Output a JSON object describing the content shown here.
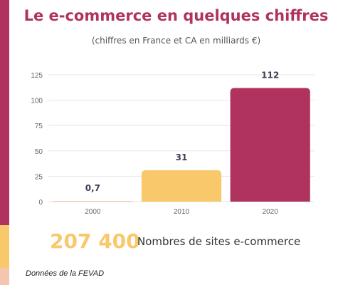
{
  "title": "Le e-commerce en quelques chiffres",
  "subtitle": "(chiffres en France et CA en milliards €)",
  "colors": {
    "accent_crimson": "#b0325e",
    "accent_yellow": "#f9c86b",
    "accent_peach": "#f6c5b0",
    "axis_text": "#666666",
    "value_text": "#3a3f52",
    "grid": "#e6e6e6"
  },
  "stat": {
    "value": "207 400",
    "label": "Nombres de sites e-commerce"
  },
  "source": "Données de la FEVAD",
  "chart_data": {
    "type": "bar",
    "categories": [
      "2000",
      "2010",
      "2020"
    ],
    "values": [
      0.7,
      31,
      112
    ],
    "value_labels": [
      "0,7",
      "31",
      "112"
    ],
    "bar_colors": [
      "#f6c5b0",
      "#f9c86b",
      "#b0325e"
    ],
    "yticks": [
      0,
      25,
      50,
      75,
      100,
      125
    ],
    "ylim": [
      0,
      125
    ],
    "grid": true
  }
}
